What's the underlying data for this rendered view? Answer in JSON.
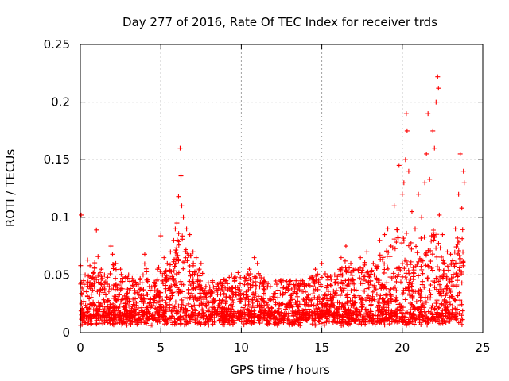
{
  "chart_data": {
    "type": "scatter",
    "title": "Day 277 of 2016, Rate Of TEC Index for receiver trds",
    "xlabel": "GPS time / hours",
    "ylabel": "ROTI / TECUs",
    "xlim": [
      0,
      25
    ],
    "ylim": [
      0,
      0.25
    ],
    "x_ticks": [
      0,
      5,
      10,
      15,
      20,
      25
    ],
    "x_tick_labels": [
      "0",
      "5",
      "10",
      "15",
      "20",
      "25"
    ],
    "y_ticks": [
      0,
      0.05,
      0.1,
      0.15,
      0.2,
      0.25
    ],
    "y_tick_labels": [
      "0",
      "0.05",
      "0.1",
      "0.15",
      "0.2",
      "0.25"
    ],
    "grid": true,
    "marker": "plus",
    "color": "#ff0000",
    "series": [
      {
        "name": "ROTI",
        "points": [
          [
            0.05,
            0.102
          ],
          [
            0.1,
            0.033
          ],
          [
            0.2,
            0.045
          ],
          [
            0.3,
            0.05
          ],
          [
            0.45,
            0.063
          ],
          [
            0.6,
            0.058
          ],
          [
            0.8,
            0.052
          ],
          [
            1.0,
            0.089
          ],
          [
            1.1,
            0.066
          ],
          [
            1.3,
            0.055
          ],
          [
            1.5,
            0.05
          ],
          [
            1.7,
            0.048
          ],
          [
            1.9,
            0.075
          ],
          [
            2.0,
            0.068
          ],
          [
            2.2,
            0.06
          ],
          [
            2.5,
            0.055
          ],
          [
            2.8,
            0.048
          ],
          [
            3.0,
            0.05
          ],
          [
            3.3,
            0.045
          ],
          [
            3.6,
            0.042
          ],
          [
            3.9,
            0.05
          ],
          [
            4.0,
            0.068
          ],
          [
            4.3,
            0.04
          ],
          [
            4.6,
            0.043
          ],
          [
            4.8,
            0.055
          ],
          [
            5.0,
            0.084
          ],
          [
            5.2,
            0.065
          ],
          [
            5.4,
            0.06
          ],
          [
            5.6,
            0.07
          ],
          [
            5.8,
            0.08
          ],
          [
            5.9,
            0.09
          ],
          [
            6.0,
            0.095
          ],
          [
            6.1,
            0.118
          ],
          [
            6.2,
            0.16
          ],
          [
            6.25,
            0.136
          ],
          [
            6.3,
            0.11
          ],
          [
            6.4,
            0.1
          ],
          [
            6.6,
            0.09
          ],
          [
            6.8,
            0.085
          ],
          [
            7.0,
            0.07
          ],
          [
            7.2,
            0.065
          ],
          [
            7.5,
            0.06
          ],
          [
            7.8,
            0.04
          ],
          [
            8.2,
            0.045
          ],
          [
            8.6,
            0.038
          ],
          [
            9.0,
            0.045
          ],
          [
            9.4,
            0.05
          ],
          [
            9.8,
            0.052
          ],
          [
            10.2,
            0.048
          ],
          [
            10.5,
            0.055
          ],
          [
            10.8,
            0.065
          ],
          [
            11.0,
            0.06
          ],
          [
            11.4,
            0.045
          ],
          [
            11.8,
            0.04
          ],
          [
            12.2,
            0.042
          ],
          [
            12.6,
            0.045
          ],
          [
            13.0,
            0.042
          ],
          [
            13.4,
            0.045
          ],
          [
            13.8,
            0.045
          ],
          [
            14.2,
            0.043
          ],
          [
            14.6,
            0.055
          ],
          [
            15.0,
            0.06
          ],
          [
            15.4,
            0.048
          ],
          [
            15.8,
            0.05
          ],
          [
            16.2,
            0.065
          ],
          [
            16.5,
            0.075
          ],
          [
            16.8,
            0.06
          ],
          [
            17.1,
            0.055
          ],
          [
            17.4,
            0.065
          ],
          [
            17.8,
            0.07
          ],
          [
            18.2,
            0.06
          ],
          [
            18.6,
            0.08
          ],
          [
            18.9,
            0.085
          ],
          [
            19.1,
            0.09
          ],
          [
            19.3,
            0.075
          ],
          [
            19.5,
            0.11
          ],
          [
            19.8,
            0.145
          ],
          [
            20.0,
            0.12
          ],
          [
            20.1,
            0.13
          ],
          [
            20.2,
            0.15
          ],
          [
            20.25,
            0.19
          ],
          [
            20.3,
            0.175
          ],
          [
            20.4,
            0.14
          ],
          [
            20.6,
            0.105
          ],
          [
            20.8,
            0.09
          ],
          [
            21.0,
            0.12
          ],
          [
            21.2,
            0.1
          ],
          [
            21.4,
            0.13
          ],
          [
            21.5,
            0.155
          ],
          [
            21.6,
            0.19
          ],
          [
            21.7,
            0.133
          ],
          [
            21.9,
            0.175
          ],
          [
            22.0,
            0.16
          ],
          [
            22.1,
            0.2
          ],
          [
            22.2,
            0.222
          ],
          [
            22.25,
            0.212
          ],
          [
            22.3,
            0.102
          ],
          [
            22.5,
            0.085
          ],
          [
            22.8,
            0.07
          ],
          [
            23.0,
            0.068
          ],
          [
            23.3,
            0.09
          ],
          [
            23.5,
            0.12
          ],
          [
            23.6,
            0.155
          ],
          [
            23.7,
            0.108
          ],
          [
            23.8,
            0.14
          ],
          [
            23.85,
            0.13
          ]
        ]
      }
    ]
  }
}
